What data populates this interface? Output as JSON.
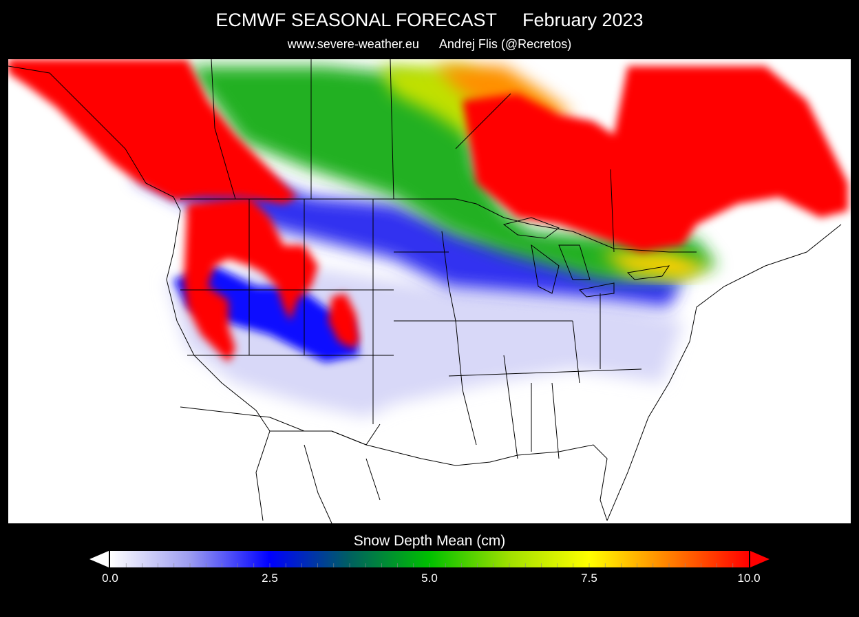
{
  "header": {
    "title": "ECMWF SEASONAL FORECAST     February 2023",
    "subtitle": "www.severe-weather.eu      Andrej Flis (@Recretos)"
  },
  "map": {
    "region": "North America",
    "background_color": "#ffffff",
    "boundary_color": "#000000"
  },
  "legend": {
    "label": "Snow Depth Mean (cm)",
    "min": 0.0,
    "max": 10.0,
    "ticks": [
      "0.0",
      "2.5",
      "5.0",
      "7.5",
      "10.0"
    ],
    "colors": [
      "#ffffff",
      "#9c9cf0",
      "#0000ff",
      "#006060",
      "#00c000",
      "#a0e000",
      "#ffff00",
      "#ff8000",
      "#ff0000"
    ],
    "under_arrow_color": "#ffffff",
    "over_arrow_color": "#ff0000"
  }
}
